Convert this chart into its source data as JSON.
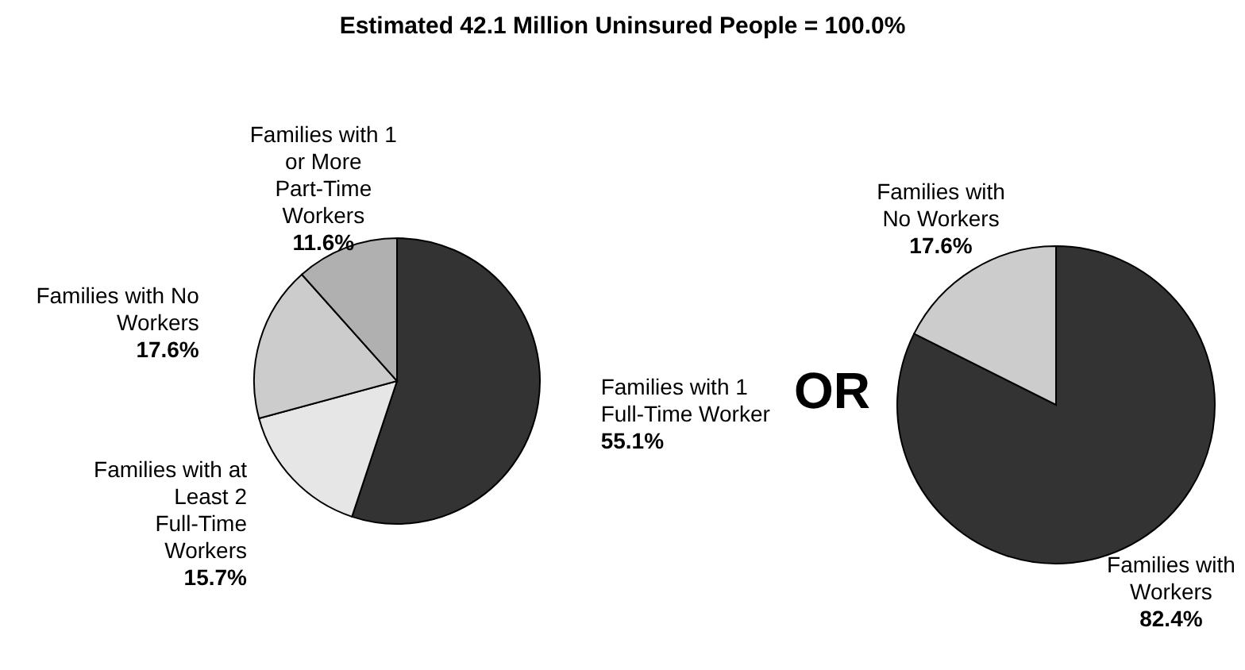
{
  "chart_data": [
    {
      "type": "pie",
      "title": "Estimated 42.1 Million Uninsured People = 100.0%",
      "categories": [
        "Families with 1 Full-Time Worker",
        "Families with at Least 2 Full-Time Workers",
        "Families with No Workers",
        "Families with 1 or More Part-Time Workers"
      ],
      "values": [
        55.1,
        15.7,
        17.6,
        11.6
      ],
      "colors": [
        "#333333",
        "#e6e6e6",
        "#cccccc",
        "#b0b0b0"
      ],
      "value_labels": [
        "55.1%",
        "15.7%",
        "17.6%",
        "11.6%"
      ]
    },
    {
      "type": "pie",
      "categories": [
        "Families with Workers",
        "Families with No Workers"
      ],
      "values": [
        82.4,
        17.6
      ],
      "colors": [
        "#333333",
        "#cccccc"
      ],
      "value_labels": [
        "82.4%",
        "17.6%"
      ],
      "annotations": [
        "OR"
      ]
    }
  ]
}
